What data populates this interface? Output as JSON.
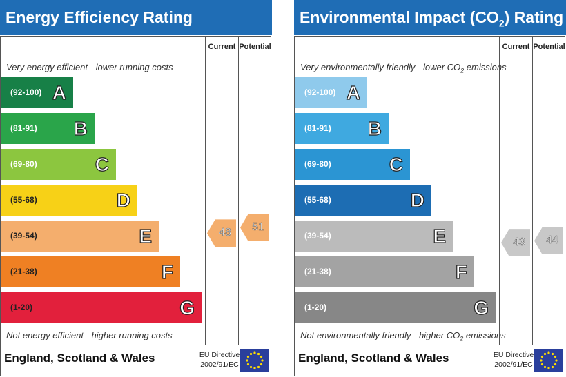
{
  "chart_data": [
    {
      "type": "bar",
      "title": "Energy Efficiency Rating",
      "top_caption": "Very energy efficient - lower running costs",
      "bottom_caption": "Not energy efficient - higher running costs",
      "columns": [
        "Current",
        "Potential"
      ],
      "bands": [
        {
          "letter": "A",
          "range": "(92-100)",
          "color": "#178047"
        },
        {
          "letter": "B",
          "range": "(81-91)",
          "color": "#2aa54a"
        },
        {
          "letter": "C",
          "range": "(69-80)",
          "color": "#8cc63f"
        },
        {
          "letter": "D",
          "range": "(55-68)",
          "color": "#f7d117"
        },
        {
          "letter": "E",
          "range": "(39-54)",
          "color": "#f4ae6d"
        },
        {
          "letter": "F",
          "range": "(21-38)",
          "color": "#ef8023"
        },
        {
          "letter": "G",
          "range": "(1-20)",
          "color": "#e2203c"
        }
      ],
      "current": {
        "value": 48,
        "label": "48",
        "color": "#f4ae6d"
      },
      "potential": {
        "value": 51,
        "label": "51",
        "color": "#f4ae6d"
      },
      "region": "England, Scotland & Wales",
      "directive_line1": "EU Directive",
      "directive_line2": "2002/91/EC"
    },
    {
      "type": "bar",
      "title_main": "Environmental Impact (CO",
      "title_sub": "2",
      "title_end": ") Rating",
      "top_caption_main": "Very environmentally friendly - lower CO",
      "top_caption_sub": "2",
      "top_caption_end": " emissions",
      "bottom_caption_main": "Not environmentally friendly - higher CO",
      "bottom_caption_sub": "2",
      "bottom_caption_end": " emissions",
      "columns": [
        "Current",
        "Potential"
      ],
      "bands": [
        {
          "letter": "A",
          "range": "(92-100)",
          "color": "#8fcaec"
        },
        {
          "letter": "B",
          "range": "(81-91)",
          "color": "#3fa9e0"
        },
        {
          "letter": "C",
          "range": "(69-80)",
          "color": "#2b95d3"
        },
        {
          "letter": "D",
          "range": "(55-68)",
          "color": "#1d6db3"
        },
        {
          "letter": "E",
          "range": "(39-54)",
          "color": "#bbbbbb"
        },
        {
          "letter": "F",
          "range": "(21-38)",
          "color": "#a3a3a3"
        },
        {
          "letter": "G",
          "range": "(1-20)",
          "color": "#878787"
        }
      ],
      "current": {
        "value": 43,
        "label": "43",
        "color": "#c8c8c8"
      },
      "potential": {
        "value": 44,
        "label": "44",
        "color": "#c8c8c8"
      },
      "region": "England, Scotland & Wales",
      "directive_line1": "EU Directive",
      "directive_line2": "2002/91/EC"
    }
  ]
}
